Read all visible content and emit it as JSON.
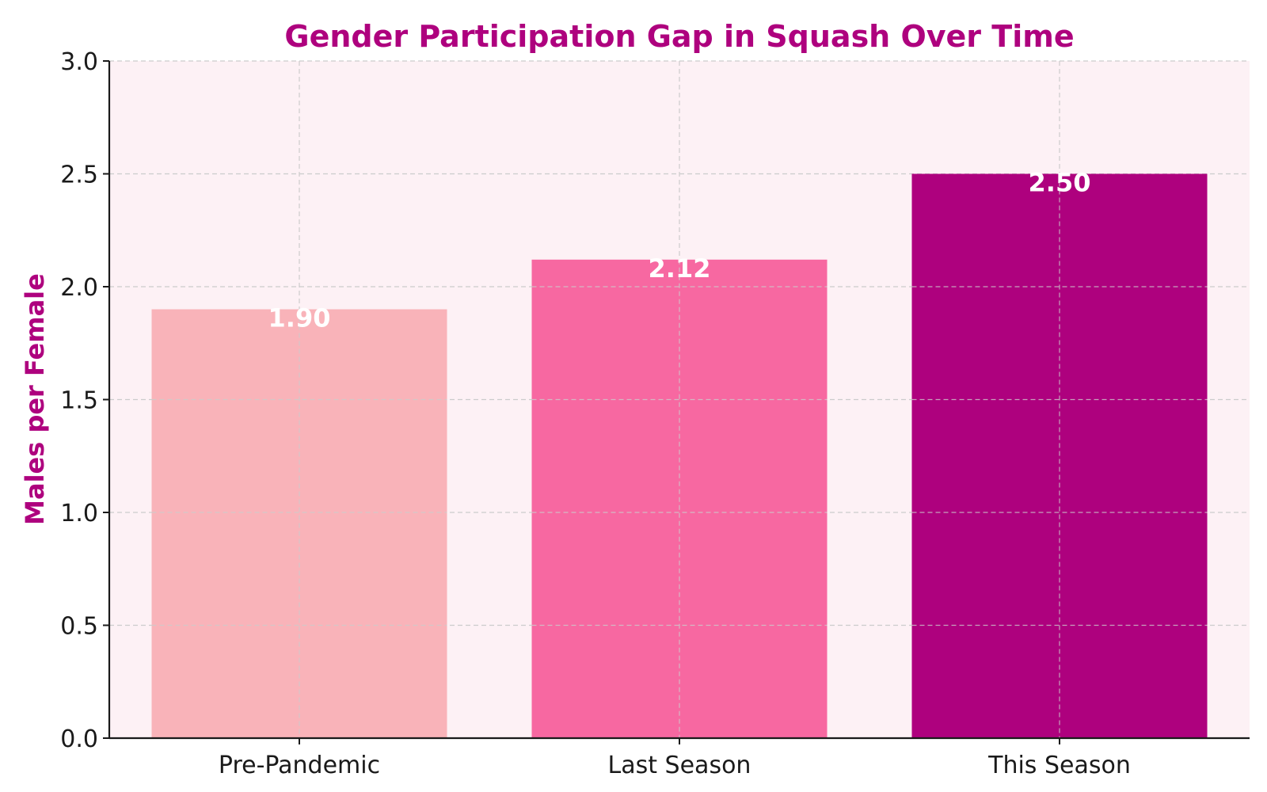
{
  "chart_data": {
    "type": "bar",
    "title": "Gender Participation Gap in Squash Over Time",
    "xlabel": "",
    "ylabel": "Males per Female",
    "categories": [
      "Pre-Pandemic",
      "Last Season",
      "This Season"
    ],
    "values": [
      1.9,
      2.12,
      2.5
    ],
    "value_labels": [
      "1.90",
      "2.12",
      "2.50"
    ],
    "ylim": [
      0,
      3.0
    ],
    "yticks": [
      0.0,
      0.5,
      1.0,
      1.5,
      2.0,
      2.5,
      3.0
    ],
    "ytick_labels": [
      "0.0",
      "0.5",
      "1.0",
      "1.5",
      "2.0",
      "2.5",
      "3.0"
    ],
    "grid": true,
    "bar_colors": [
      "#f9b3b9",
      "#f768a1",
      "#ae017e"
    ]
  },
  "colors": {
    "title": "#ae017e",
    "ylabel": "#ae017e",
    "plot_background": "#fdf1f5",
    "grid": "#cccccc",
    "axis": "#1a1a1a"
  }
}
